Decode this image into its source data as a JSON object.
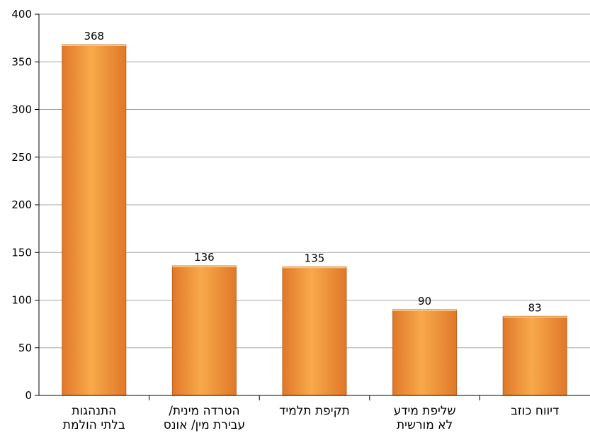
{
  "chart_data": {
    "type": "bar",
    "categories": [
      [
        "התנהגות",
        "בלתי הולמת"
      ],
      [
        "הטרדה מינית/",
        "עבירת מין/ אונס"
      ],
      [
        "תקיפת תלמיד"
      ],
      [
        "שליפת מידע",
        "לא מורשית"
      ],
      [
        "דיווח כוזב"
      ]
    ],
    "values": [
      368,
      136,
      135,
      90,
      83
    ],
    "data_labels": [
      "368",
      "136",
      "135",
      "90",
      "83"
    ],
    "yticks": [
      "0",
      "50",
      "100",
      "150",
      "200",
      "250",
      "300",
      "350",
      "400"
    ],
    "ylim": [
      0,
      400
    ],
    "title": "",
    "xlabel": "",
    "ylabel": "",
    "grid": true,
    "bar_color_light": "#F8A94A",
    "bar_color_dark": "#E0782A",
    "gridline_color": "#A6A6A6"
  }
}
